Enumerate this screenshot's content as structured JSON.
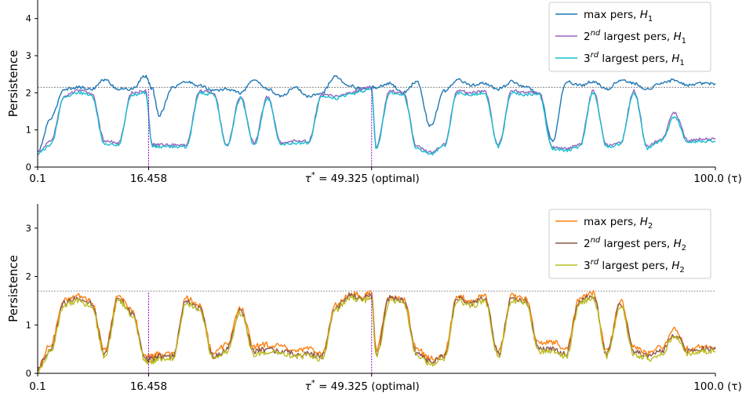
{
  "chart_data": [
    {
      "type": "line",
      "ylabel": "Persistence",
      "xlim": [
        0.1,
        100.0
      ],
      "ylim": [
        0,
        4.5
      ],
      "yticks": [
        0,
        1,
        2,
        3,
        4
      ],
      "xtick_labels": [
        "0.1",
        "16.458",
        "τ* = 49.325 (optimal)",
        "100.0 (τ)"
      ],
      "xticks": [
        0.1,
        16.458,
        49.325,
        100.0
      ],
      "threshold": 2.15,
      "vlines": [
        16.458,
        49.325
      ],
      "legend_position": "top-right",
      "x": [
        0.1,
        2,
        4,
        6,
        8,
        10,
        12,
        14,
        16,
        17,
        18,
        20,
        22,
        24,
        26,
        28,
        30,
        32,
        34,
        36,
        38,
        40,
        42,
        44,
        46,
        48,
        49.3,
        50,
        52,
        54,
        56,
        58,
        60,
        62,
        64,
        66,
        68,
        70,
        72,
        74,
        76,
        78,
        80,
        82,
        84,
        86,
        88,
        90,
        92,
        94,
        96,
        98,
        100
      ],
      "series": [
        {
          "name": "max pers, H1",
          "color": "#1f77b4",
          "values": [
            0.4,
            1.3,
            2.1,
            2.15,
            2.1,
            2.35,
            2.1,
            2.1,
            2.45,
            2.1,
            1.4,
            2.15,
            2.3,
            2.2,
            2.05,
            2.1,
            2.0,
            2.35,
            2.1,
            1.9,
            2.15,
            1.9,
            2.0,
            2.45,
            2.2,
            2.1,
            2.15,
            2.15,
            2.25,
            2.0,
            2.3,
            1.1,
            2.05,
            2.35,
            2.2,
            2.25,
            2.1,
            2.3,
            2.15,
            2.0,
            0.7,
            2.3,
            2.2,
            2.3,
            2.1,
            2.35,
            2.25,
            2.1,
            2.25,
            2.35,
            2.2,
            2.25,
            2.25
          ]
        },
        {
          "name": "2nd largest pers, H1",
          "color": "#9467bd",
          "values": [
            0.4,
            0.7,
            1.9,
            2.05,
            2.0,
            0.7,
            0.65,
            2.0,
            2.05,
            0.6,
            0.6,
            0.6,
            0.6,
            2.05,
            2.0,
            0.6,
            1.9,
            0.65,
            1.9,
            0.65,
            0.7,
            0.7,
            1.95,
            1.9,
            2.0,
            2.1,
            2.15,
            0.55,
            2.05,
            2.0,
            0.55,
            0.4,
            0.6,
            2.05,
            2.0,
            2.05,
            0.6,
            2.05,
            2.0,
            2.0,
            0.55,
            0.5,
            0.6,
            2.05,
            0.6,
            0.65,
            2.05,
            0.55,
            0.75,
            1.45,
            0.7,
            0.75,
            0.75
          ]
        },
        {
          "name": "3rd largest pers, H1",
          "color": "#17becf",
          "values": [
            0.35,
            0.6,
            1.85,
            2.0,
            1.95,
            0.6,
            0.6,
            1.95,
            2.0,
            0.55,
            0.55,
            0.55,
            0.55,
            2.0,
            1.95,
            0.55,
            1.85,
            0.6,
            1.85,
            0.6,
            0.65,
            0.65,
            1.9,
            1.85,
            1.95,
            2.05,
            2.1,
            0.5,
            2.0,
            1.95,
            0.5,
            0.35,
            0.55,
            2.0,
            1.95,
            2.0,
            0.55,
            2.0,
            1.95,
            1.95,
            0.5,
            0.45,
            0.55,
            2.0,
            0.55,
            0.6,
            2.0,
            0.5,
            0.7,
            1.35,
            0.65,
            0.7,
            0.7
          ]
        }
      ]
    },
    {
      "type": "line",
      "ylabel": "Persistence",
      "xlim": [
        0.1,
        100.0
      ],
      "ylim": [
        0,
        3.5
      ],
      "yticks": [
        0,
        1,
        2,
        3
      ],
      "xtick_labels": [
        "0.1",
        "16.458",
        "τ* = 49.325 (optimal)",
        "100.0 (τ)"
      ],
      "xticks": [
        0.1,
        16.458,
        49.325,
        100.0
      ],
      "threshold": 1.7,
      "vlines": [
        16.458,
        49.325
      ],
      "legend_position": "top-right",
      "x": [
        0.1,
        2,
        4,
        6,
        8,
        10,
        12,
        14,
        16,
        17,
        18,
        20,
        22,
        24,
        26,
        28,
        30,
        32,
        34,
        36,
        38,
        40,
        42,
        44,
        46,
        48,
        49.3,
        50,
        52,
        54,
        56,
        58,
        60,
        62,
        64,
        66,
        68,
        70,
        72,
        74,
        76,
        78,
        80,
        82,
        84,
        86,
        88,
        90,
        92,
        94,
        96,
        98,
        100
      ],
      "series": [
        {
          "name": "max pers, H2",
          "color": "#ff7f0e",
          "values": [
            0.1,
            0.6,
            1.5,
            1.6,
            1.5,
            0.5,
            1.6,
            1.3,
            0.35,
            0.35,
            0.4,
            0.4,
            1.55,
            1.4,
            0.4,
            0.6,
            1.35,
            0.55,
            0.6,
            0.55,
            0.45,
            0.5,
            0.4,
            1.4,
            1.65,
            1.6,
            1.65,
            0.5,
            1.6,
            1.55,
            0.5,
            0.3,
            0.4,
            1.6,
            1.5,
            1.6,
            0.45,
            1.6,
            1.55,
            0.6,
            0.65,
            0.5,
            1.55,
            1.65,
            0.45,
            1.5,
            0.55,
            0.4,
            0.55,
            0.9,
            0.5,
            0.55,
            0.55
          ]
        },
        {
          "name": "2nd largest pers, H2",
          "color": "#8c564b",
          "values": [
            0.1,
            0.5,
            1.45,
            1.55,
            1.45,
            0.4,
            1.55,
            1.25,
            0.3,
            0.3,
            0.35,
            0.35,
            1.5,
            1.35,
            0.35,
            0.5,
            1.3,
            0.45,
            0.5,
            0.45,
            0.4,
            0.4,
            0.35,
            1.35,
            1.6,
            1.55,
            1.6,
            0.4,
            1.55,
            1.5,
            0.4,
            0.25,
            0.35,
            1.55,
            1.45,
            1.55,
            0.4,
            1.55,
            1.5,
            0.5,
            0.5,
            0.4,
            1.5,
            1.6,
            0.4,
            1.45,
            0.45,
            0.35,
            0.45,
            0.8,
            0.45,
            0.5,
            0.5
          ]
        },
        {
          "name": "3rd largest pers, H2",
          "color": "#bcbd22",
          "values": [
            0.05,
            0.45,
            1.4,
            1.5,
            1.4,
            0.35,
            1.5,
            1.2,
            0.25,
            0.25,
            0.3,
            0.3,
            1.45,
            1.3,
            0.3,
            0.45,
            1.25,
            0.4,
            0.45,
            0.4,
            0.35,
            0.35,
            0.3,
            1.3,
            1.55,
            1.5,
            1.55,
            0.35,
            1.5,
            1.45,
            0.35,
            0.2,
            0.3,
            1.5,
            1.4,
            1.5,
            0.35,
            1.5,
            1.45,
            0.45,
            0.45,
            0.35,
            1.45,
            1.55,
            0.35,
            1.4,
            0.4,
            0.3,
            0.4,
            0.75,
            0.4,
            0.45,
            0.45
          ]
        }
      ]
    }
  ],
  "legends": [
    [
      {
        "base": "max pers, ",
        "sub_var": "H",
        "sub": "1"
      },
      {
        "base": "2",
        "sup": "nd",
        "rest": " largest pers, ",
        "sub_var": "H",
        "sub": "1"
      },
      {
        "base": "3",
        "sup": "rd",
        "rest": " largest pers, ",
        "sub_var": "H",
        "sub": "1"
      }
    ],
    [
      {
        "base": "max pers, ",
        "sub_var": "H",
        "sub": "2"
      },
      {
        "base": "2",
        "sup": "nd",
        "rest": " largest pers, ",
        "sub_var": "H",
        "sub": "2"
      },
      {
        "base": "3",
        "sup": "rd",
        "rest": " largest pers, ",
        "sub_var": "H",
        "sub": "2"
      }
    ]
  ]
}
